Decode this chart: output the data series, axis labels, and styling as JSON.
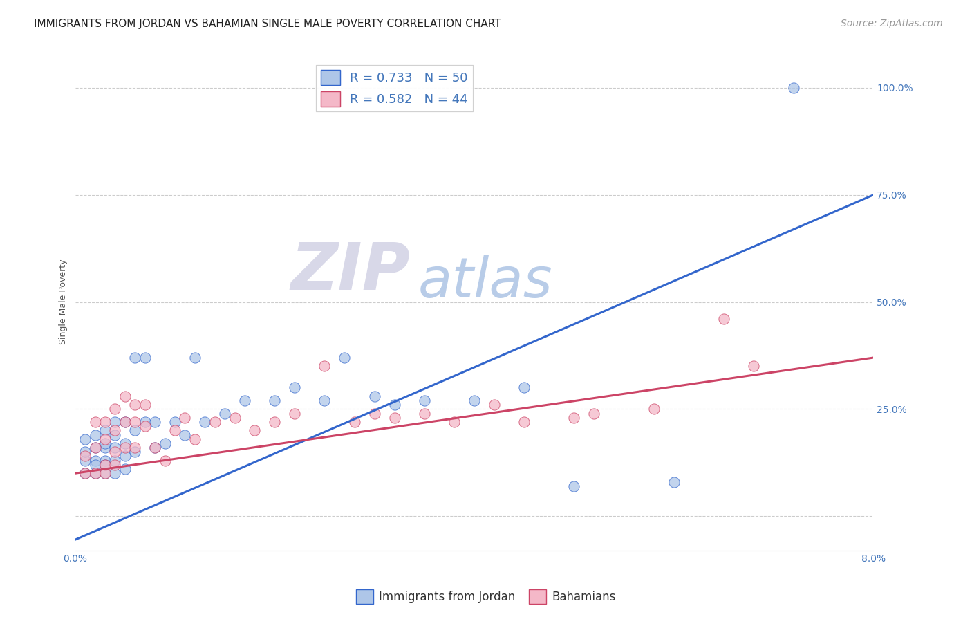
{
  "title": "IMMIGRANTS FROM JORDAN VS BAHAMIAN SINGLE MALE POVERTY CORRELATION CHART",
  "source": "Source: ZipAtlas.com",
  "ylabel": "Single Male Poverty",
  "y_ticks": [
    0.0,
    0.25,
    0.5,
    0.75,
    1.0
  ],
  "y_tick_labels": [
    "",
    "25.0%",
    "50.0%",
    "75.0%",
    "100.0%"
  ],
  "x_range": [
    0.0,
    0.08
  ],
  "y_range": [
    -0.08,
    1.08
  ],
  "blue_R": 0.733,
  "blue_N": 50,
  "pink_R": 0.582,
  "pink_N": 44,
  "blue_color": "#aec6e8",
  "pink_color": "#f4b8c8",
  "blue_line_color": "#3366cc",
  "pink_line_color": "#cc4466",
  "watermark_ZIP": "ZIP",
  "watermark_atlas": "atlas",
  "watermark_ZIP_color": "#d8d8e8",
  "watermark_atlas_color": "#b8cce8",
  "blue_scatter_x": [
    0.001,
    0.001,
    0.001,
    0.001,
    0.002,
    0.002,
    0.002,
    0.002,
    0.002,
    0.003,
    0.003,
    0.003,
    0.003,
    0.003,
    0.003,
    0.004,
    0.004,
    0.004,
    0.004,
    0.004,
    0.005,
    0.005,
    0.005,
    0.005,
    0.006,
    0.006,
    0.006,
    0.007,
    0.007,
    0.008,
    0.008,
    0.009,
    0.01,
    0.011,
    0.012,
    0.013,
    0.015,
    0.017,
    0.02,
    0.022,
    0.025,
    0.027,
    0.03,
    0.032,
    0.035,
    0.04,
    0.045,
    0.05,
    0.06,
    0.072
  ],
  "blue_scatter_y": [
    0.1,
    0.13,
    0.15,
    0.18,
    0.1,
    0.13,
    0.16,
    0.19,
    0.12,
    0.1,
    0.13,
    0.16,
    0.2,
    0.17,
    0.12,
    0.13,
    0.16,
    0.19,
    0.22,
    0.1,
    0.14,
    0.17,
    0.22,
    0.11,
    0.15,
    0.2,
    0.37,
    0.22,
    0.37,
    0.16,
    0.22,
    0.17,
    0.22,
    0.19,
    0.37,
    0.22,
    0.24,
    0.27,
    0.27,
    0.3,
    0.27,
    0.37,
    0.28,
    0.26,
    0.27,
    0.27,
    0.3,
    0.07,
    0.08,
    1.0
  ],
  "pink_scatter_x": [
    0.001,
    0.001,
    0.002,
    0.002,
    0.002,
    0.003,
    0.003,
    0.003,
    0.003,
    0.004,
    0.004,
    0.004,
    0.004,
    0.005,
    0.005,
    0.005,
    0.006,
    0.006,
    0.006,
    0.007,
    0.007,
    0.008,
    0.009,
    0.01,
    0.011,
    0.012,
    0.014,
    0.016,
    0.018,
    0.02,
    0.022,
    0.025,
    0.028,
    0.03,
    0.032,
    0.035,
    0.038,
    0.042,
    0.045,
    0.05,
    0.052,
    0.058,
    0.065,
    0.068
  ],
  "pink_scatter_y": [
    0.1,
    0.14,
    0.1,
    0.16,
    0.22,
    0.12,
    0.18,
    0.22,
    0.1,
    0.15,
    0.2,
    0.25,
    0.12,
    0.16,
    0.22,
    0.28,
    0.22,
    0.26,
    0.16,
    0.21,
    0.26,
    0.16,
    0.13,
    0.2,
    0.23,
    0.18,
    0.22,
    0.23,
    0.2,
    0.22,
    0.24,
    0.35,
    0.22,
    0.24,
    0.23,
    0.24,
    0.22,
    0.26,
    0.22,
    0.23,
    0.24,
    0.25,
    0.46,
    0.35
  ],
  "blue_line_x": [
    0.0,
    0.08
  ],
  "blue_line_y": [
    -0.055,
    0.75
  ],
  "pink_line_x": [
    0.0,
    0.08
  ],
  "pink_line_y": [
    0.1,
    0.37
  ],
  "background_color": "#ffffff",
  "grid_color": "#cccccc",
  "title_fontsize": 11,
  "axis_label_fontsize": 9,
  "tick_fontsize": 10,
  "legend_fontsize": 13,
  "source_fontsize": 10
}
